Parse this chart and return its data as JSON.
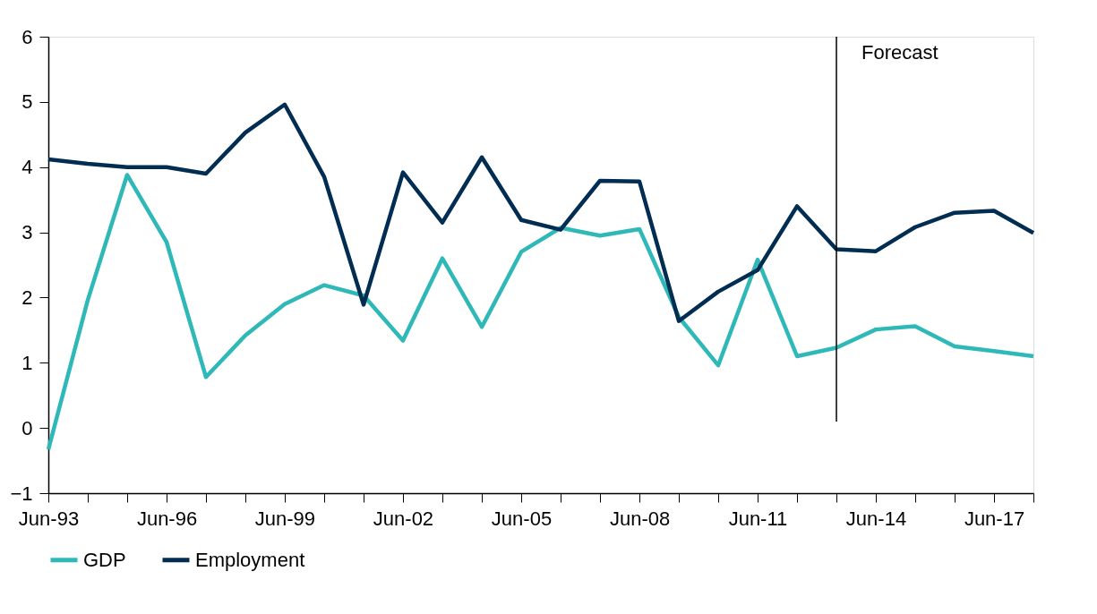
{
  "chart_data": {
    "type": "line",
    "x": [
      "1993-06",
      "1994-06",
      "1995-06",
      "1996-06",
      "1997-06",
      "1998-06",
      "1999-06",
      "2000-06",
      "2001-06",
      "2002-06",
      "2003-06",
      "2004-06",
      "2005-06",
      "2006-06",
      "2007-06",
      "2008-06",
      "2009-06",
      "2010-06",
      "2011-06",
      "2012-06",
      "2013-06",
      "2014-06",
      "2015-06",
      "2016-06",
      "2017-06",
      "2018-06"
    ],
    "series": [
      {
        "name": "GDP",
        "color": "#2fb8b8",
        "values": [
          -0.33,
          1.96,
          3.88,
          2.85,
          0.78,
          1.42,
          1.9,
          2.19,
          2.03,
          1.34,
          2.6,
          1.55,
          2.7,
          3.07,
          2.95,
          3.05,
          1.7,
          0.96,
          2.58,
          1.1,
          1.23,
          1.51,
          1.56,
          1.25,
          1.18,
          1.1
        ]
      },
      {
        "name": "Employment",
        "color": "#012d52",
        "values": [
          4.12,
          4.05,
          4.0,
          4.0,
          3.9,
          4.53,
          4.96,
          3.85,
          1.89,
          3.92,
          3.15,
          4.15,
          3.19,
          3.04,
          3.79,
          3.78,
          1.64,
          2.09,
          2.42,
          3.4,
          2.74,
          2.71,
          3.08,
          3.3,
          3.33,
          2.99
        ]
      }
    ],
    "xlim": [
      "1993-06",
      "2018-06"
    ],
    "xticks": [
      {
        "value": "1993-06",
        "label": "Jun-93"
      },
      {
        "value": "1994-06",
        "label": null
      },
      {
        "value": "1995-06",
        "label": null
      },
      {
        "value": "1996-06",
        "label": "Jun-96"
      },
      {
        "value": "1997-06",
        "label": null
      },
      {
        "value": "1998-06",
        "label": null
      },
      {
        "value": "1999-06",
        "label": "Jun-99"
      },
      {
        "value": "2000-06",
        "label": null
      },
      {
        "value": "2001-06",
        "label": null
      },
      {
        "value": "2002-06",
        "label": "Jun-02"
      },
      {
        "value": "2003-06",
        "label": null
      },
      {
        "value": "2004-06",
        "label": null
      },
      {
        "value": "2005-06",
        "label": "Jun-05"
      },
      {
        "value": "2006-06",
        "label": null
      },
      {
        "value": "2007-06",
        "label": null
      },
      {
        "value": "2008-06",
        "label": "Jun-08"
      },
      {
        "value": "2009-06",
        "label": null
      },
      {
        "value": "2010-06",
        "label": null
      },
      {
        "value": "2011-06",
        "label": "Jun-11"
      },
      {
        "value": "2012-06",
        "label": null
      },
      {
        "value": "2013-06",
        "label": null
      },
      {
        "value": "2014-06",
        "label": "Jun-14"
      },
      {
        "value": "2015-06",
        "label": null
      },
      {
        "value": "2016-06",
        "label": null
      },
      {
        "value": "2017-06",
        "label": "Jun-17"
      },
      {
        "value": "2018-06",
        "label": null
      }
    ],
    "ylim": [
      -1,
      6
    ],
    "yticks": [
      -1,
      0,
      1,
      2,
      3,
      4,
      5,
      6
    ],
    "ref_lines": [
      {
        "axis": "x",
        "value": "2013-06",
        "label": "Forecast",
        "color": "#000000"
      }
    ],
    "grid": false,
    "legend": "bottom",
    "marker": "none",
    "line_style": "solid"
  }
}
